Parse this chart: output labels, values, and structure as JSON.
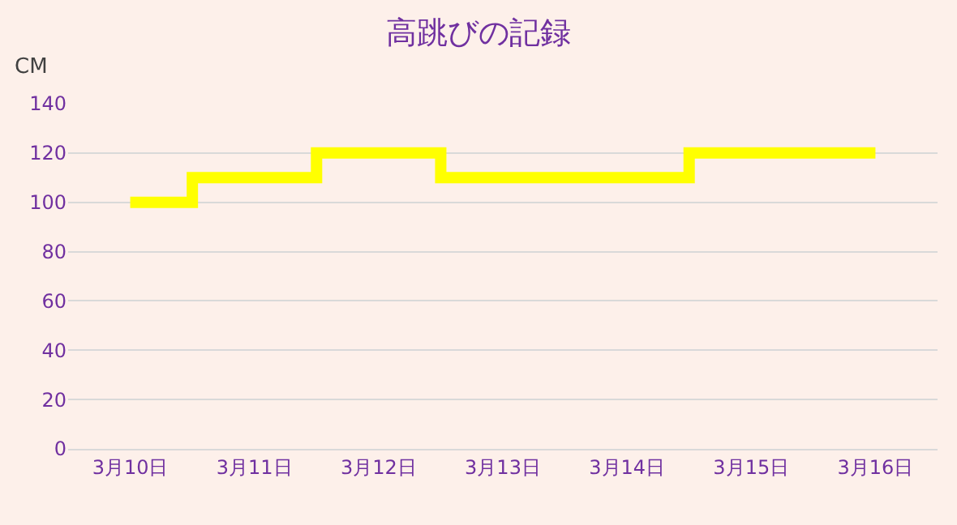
{
  "chart_data": {
    "type": "step",
    "title": "高跳びの記録",
    "ylabel": "CM",
    "categories": [
      "3月10日",
      "3月11日",
      "3月12日",
      "3月13日",
      "3月14日",
      "3月15日",
      "3月16日"
    ],
    "series": [
      {
        "color": "#ffff00",
        "values": [
          100,
          110,
          120,
          110,
          110,
          120,
          120
        ]
      }
    ],
    "ylim": [
      0,
      140
    ],
    "yticks": [
      0,
      20,
      40,
      60,
      80,
      100,
      120,
      140
    ],
    "grid": "y",
    "legend": false
  }
}
